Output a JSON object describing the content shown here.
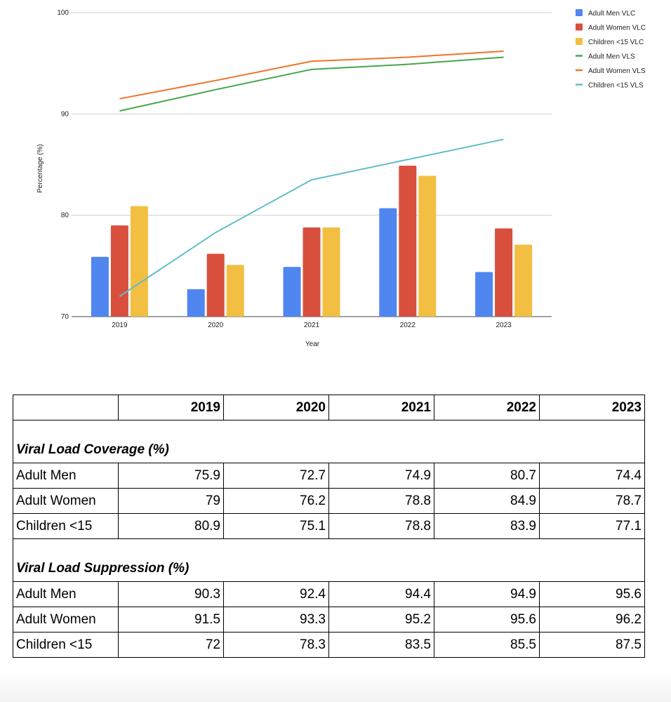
{
  "chart_data": {
    "type": "bar",
    "categories": [
      "2019",
      "2020",
      "2021",
      "2022",
      "2023"
    ],
    "xlabel": "Year",
    "ylabel": "Percentage (%)",
    "ylim": [
      70,
      100
    ],
    "yticks": [
      70,
      80,
      90,
      100
    ],
    "grid": true,
    "legend_position": "right",
    "bar_series": [
      {
        "name": "Adult Men VLC",
        "color": "#4f86f0",
        "values": [
          75.9,
          72.7,
          74.9,
          80.7,
          74.4
        ]
      },
      {
        "name": "Adult Women VLC",
        "color": "#d94f3d",
        "values": [
          79,
          76.2,
          78.8,
          84.9,
          78.7
        ]
      },
      {
        "name": "Children <15 VLC",
        "color": "#f2bf42",
        "values": [
          80.9,
          75.1,
          78.8,
          83.9,
          77.1
        ]
      }
    ],
    "line_series": [
      {
        "name": "Adult Men VLS",
        "color": "#46a64a",
        "values": [
          90.3,
          92.4,
          94.4,
          94.9,
          95.6
        ]
      },
      {
        "name": "Adult Women VLS",
        "color": "#ef7428",
        "values": [
          91.5,
          93.3,
          95.2,
          95.6,
          96.2
        ]
      },
      {
        "name": "Children <15 VLS",
        "color": "#62bdc8",
        "values": [
          72,
          78.3,
          83.5,
          85.5,
          87.5
        ]
      }
    ]
  },
  "table": {
    "headers": [
      "",
      "2019",
      "2020",
      "2021",
      "2022",
      "2023"
    ],
    "sections": [
      {
        "title": "Viral Load Coverage (%)",
        "rows": [
          {
            "label": "Adult Men",
            "values": [
              "75.9",
              "72.7",
              "74.9",
              "80.7",
              "74.4"
            ]
          },
          {
            "label": "Adult Women",
            "values": [
              "79",
              "76.2",
              "78.8",
              "84.9",
              "78.7"
            ]
          },
          {
            "label": "Children <15",
            "values": [
              "80.9",
              "75.1",
              "78.8",
              "83.9",
              "77.1"
            ]
          }
        ]
      },
      {
        "title": "Viral Load Suppression (%)",
        "rows": [
          {
            "label": "Adult Men",
            "values": [
              "90.3",
              "92.4",
              "94.4",
              "94.9",
              "95.6"
            ]
          },
          {
            "label": "Adult Women",
            "values": [
              "91.5",
              "93.3",
              "95.2",
              "95.6",
              "96.2"
            ]
          },
          {
            "label": "Children <15",
            "values": [
              "72",
              "78.3",
              "83.5",
              "85.5",
              "87.5"
            ]
          }
        ]
      }
    ]
  }
}
